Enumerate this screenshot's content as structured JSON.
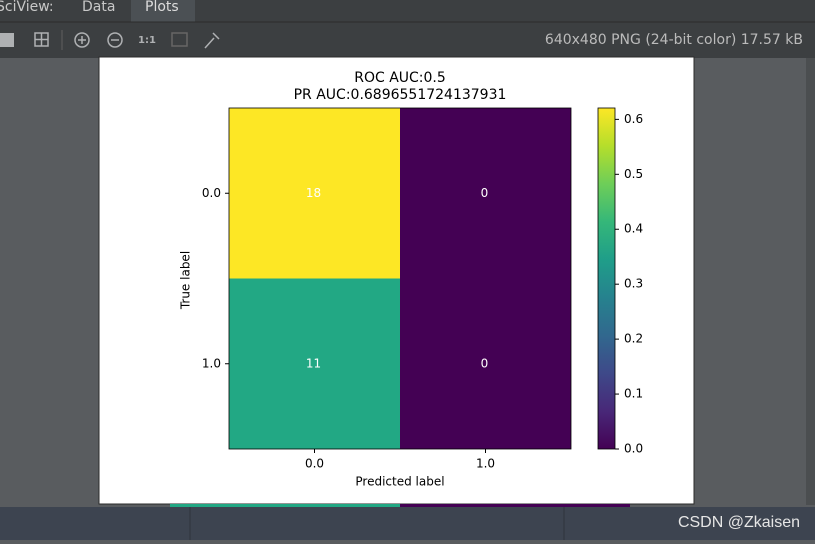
{
  "tabs": [
    "SciView:",
    "Data",
    "Plots"
  ],
  "image_info": "640x480 PNG (24-bit color) 17.57 kB",
  "watermark": "CSDN @Zkaisen",
  "chart_data": {
    "type": "heatmap",
    "title": "ROC AUC:0.5",
    "subtitle": "PR AUC:0.6896551724137931",
    "x_label": "Predicted label",
    "y_label": "True label",
    "x_categories": [
      "0.0",
      "1.0"
    ],
    "y_categories": [
      "0.0",
      "1.0"
    ],
    "values": [
      [
        18,
        0
      ],
      [
        11,
        0
      ]
    ],
    "cell_colors": [
      [
        "#fde725",
        "#440154"
      ],
      [
        "#22a884",
        "#440154"
      ]
    ],
    "text_color": "#ffffff",
    "colorbar": {
      "lim": [
        0,
        0.6207
      ],
      "ticks": [
        {
          "value": 0,
          "label": "0.0"
        },
        {
          "value": 0.1,
          "label": "0.1"
        },
        {
          "value": 0.2,
          "label": "0.2"
        },
        {
          "value": 0.3,
          "label": "0.3"
        },
        {
          "value": 0.4,
          "label": "0.4"
        },
        {
          "value": 0.5,
          "label": "0.5"
        },
        {
          "value": 0.6,
          "label": "0.6"
        }
      ],
      "colors": [
        "#440154",
        "#482878",
        "#3e4989",
        "#31688e",
        "#26828e",
        "#1f9e89",
        "#35b779",
        "#6ece58",
        "#b5de2b",
        "#fde725"
      ]
    }
  }
}
